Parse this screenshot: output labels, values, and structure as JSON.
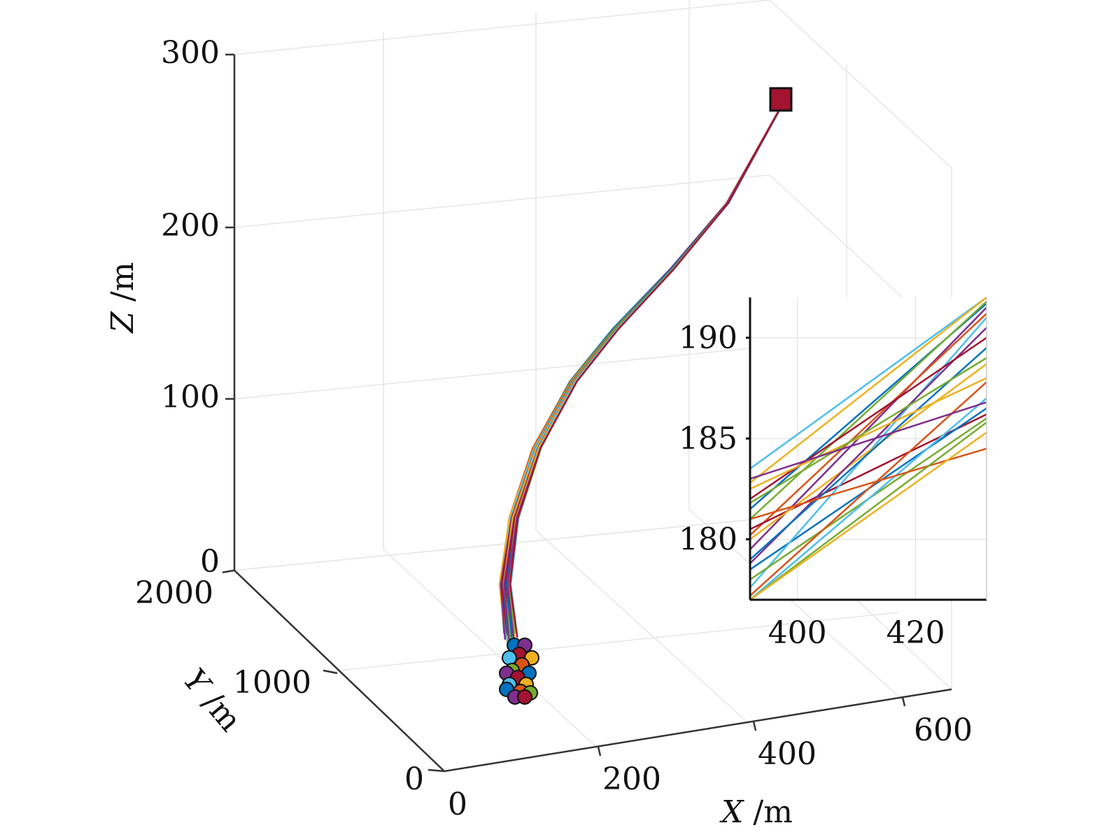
{
  "chart_data": {
    "type": "line",
    "projection": "3d",
    "title": "",
    "xlabel": {
      "var": "X",
      "unit": "/m"
    },
    "ylabel": {
      "var": "Y",
      "unit": "/m"
    },
    "zlabel": {
      "var": "Z",
      "unit": "/m"
    },
    "x_ticks": [
      "0",
      "200",
      "400",
      "600"
    ],
    "y_ticks": [
      "0",
      "1000",
      "2000"
    ],
    "z_ticks": [
      "0",
      "100",
      "200",
      "300"
    ],
    "xlim": [
      0,
      600
    ],
    "ylim": [
      0,
      2000
    ],
    "zlim": [
      0,
      300
    ],
    "grid": true,
    "start_marker": "colored circles (one per trajectory)",
    "end_marker": "dark red square",
    "path_center": {
      "x": [
        120,
        180,
        240,
        290,
        340,
        385,
        420,
        450,
        470
      ],
      "y": [
        1750,
        1700,
        1630,
        1560,
        1480,
        1420,
        1380,
        1350,
        1330
      ],
      "z": [
        0,
        25,
        55,
        90,
        130,
        170,
        210,
        245,
        275
      ]
    },
    "inset": {
      "xlim": [
        392,
        432
      ],
      "ylim": [
        177,
        192
      ],
      "x_ticks": [
        "400",
        "420"
      ],
      "y_ticks": [
        "180",
        "185",
        "190"
      ],
      "series": [
        {
          "color": "#0072BD",
          "z": [
            181.5,
            191.7
          ]
        },
        {
          "color": "#4DBEEE",
          "z": [
            183.5,
            192.0
          ]
        },
        {
          "color": "#EDB120",
          "z": [
            182.8,
            192.0
          ]
        },
        {
          "color": "#77AC30",
          "z": [
            181.0,
            191.8
          ]
        },
        {
          "color": "#7E2F8E",
          "z": [
            179.5,
            191.5
          ]
        },
        {
          "color": "#D95319",
          "z": [
            180.2,
            191.2
          ]
        },
        {
          "color": "#A2142F",
          "z": [
            180.5,
            186.2
          ]
        },
        {
          "color": "#0072BD",
          "z": [
            178.5,
            186.5
          ]
        },
        {
          "color": "#4DBEEE",
          "z": [
            177.6,
            191.0
          ]
        },
        {
          "color": "#EDB120",
          "z": [
            180.0,
            188.7
          ]
        },
        {
          "color": "#77AC30",
          "z": [
            178.0,
            186.0
          ]
        },
        {
          "color": "#7E2F8E",
          "z": [
            178.8,
            190.5
          ]
        },
        {
          "color": "#D95319",
          "z": [
            177.2,
            187.8
          ]
        },
        {
          "color": "#A2142F",
          "z": [
            182.0,
            190.0
          ]
        },
        {
          "color": "#0072BD",
          "z": [
            179.0,
            189.5
          ]
        },
        {
          "color": "#4DBEEE",
          "z": [
            177.0,
            187.0
          ]
        },
        {
          "color": "#EDB120",
          "z": [
            182.5,
            188.0
          ]
        },
        {
          "color": "#77AC30",
          "z": [
            181.8,
            189.0
          ]
        },
        {
          "color": "#7E2F8E",
          "z": [
            183.0,
            186.8
          ]
        },
        {
          "color": "#D95319",
          "z": [
            181.0,
            184.5
          ]
        },
        {
          "color": "#77AC30",
          "z": [
            176.8,
            185.8
          ]
        },
        {
          "color": "#EDB120",
          "z": [
            176.9,
            185.3
          ]
        }
      ]
    },
    "colors": [
      "#0072BD",
      "#D95319",
      "#EDB120",
      "#7E2F8E",
      "#77AC30",
      "#4DBEEE",
      "#A2142F"
    ]
  }
}
